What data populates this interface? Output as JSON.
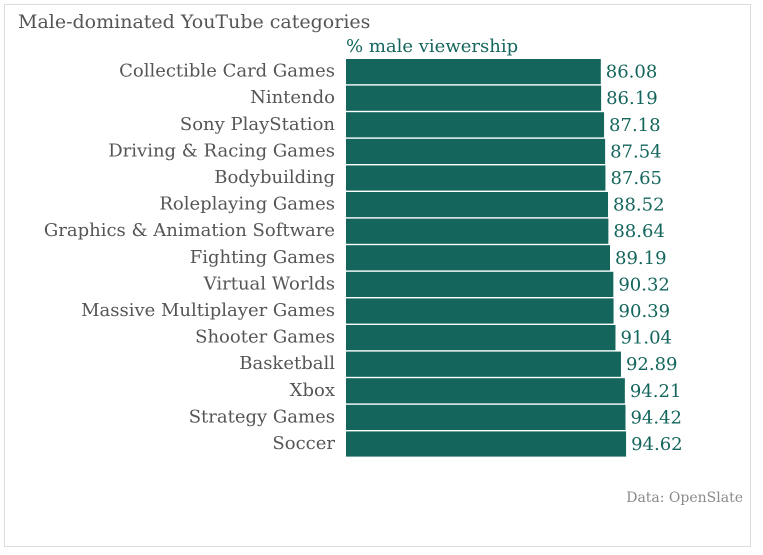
{
  "chart_data": {
    "type": "bar",
    "orientation": "horizontal",
    "title": "Male-dominated YouTube categories",
    "value_axis_title": "% male viewership",
    "source": "Data: OpenSlate",
    "categories": [
      "Collectible Card Games",
      "Nintendo",
      "Sony PlayStation",
      "Driving & Racing Games",
      "Bodybuilding",
      "Roleplaying Games",
      "Graphics & Animation Software",
      "Fighting Games",
      "Virtual Worlds",
      "Massive Multiplayer Games",
      "Shooter Games",
      "Basketball",
      "Xbox",
      "Strategy Games",
      "Soccer"
    ],
    "values": [
      86.08,
      86.19,
      87.18,
      87.54,
      87.65,
      88.52,
      88.64,
      89.19,
      90.32,
      90.39,
      91.04,
      92.89,
      94.21,
      94.42,
      94.62
    ],
    "value_labels": [
      "86.08",
      "86.19",
      "87.18",
      "87.54",
      "87.65",
      "88.52",
      "88.64",
      "89.19",
      "90.32",
      "90.39",
      "91.04",
      "92.89",
      "94.21",
      "94.42",
      "94.62"
    ],
    "xlim": [
      0,
      100
    ],
    "grid": false,
    "legend": "none",
    "bar_color": "#14665c"
  }
}
